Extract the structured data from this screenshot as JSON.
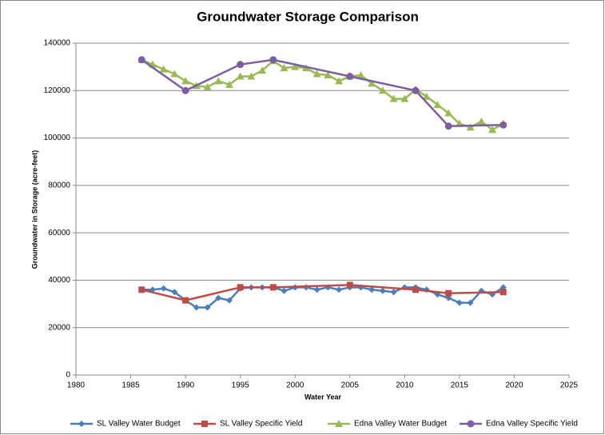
{
  "chart_data": {
    "type": "line",
    "title": "Groundwater Storage Comparison",
    "xlabel": "Water Year",
    "ylabel": "Groundwater in Storage (acre-feet)",
    "xlim": [
      1980,
      2025
    ],
    "xticks": [
      1980,
      1985,
      1990,
      1995,
      2000,
      2005,
      2010,
      2015,
      2020,
      2025
    ],
    "ylim": [
      0,
      140000
    ],
    "yticks": [
      0,
      20000,
      40000,
      60000,
      80000,
      100000,
      120000,
      140000
    ],
    "grid": true,
    "legend": "bottom",
    "series": [
      {
        "name": "SL Valley Water Budget",
        "color": "#4a7ebb",
        "marker": "diamond",
        "x": [
          1986,
          1987,
          1988,
          1989,
          1990,
          1991,
          1992,
          1993,
          1994,
          1995,
          1996,
          1997,
          1998,
          1999,
          2000,
          2001,
          2002,
          2003,
          2004,
          2005,
          2006,
          2007,
          2008,
          2009,
          2010,
          2011,
          2012,
          2013,
          2014,
          2015,
          2016,
          2017,
          2018,
          2019
        ],
        "values": [
          36000,
          36000,
          36500,
          35000,
          31500,
          28500,
          28500,
          32500,
          31500,
          36500,
          37000,
          37000,
          37000,
          35500,
          37000,
          37000,
          36000,
          37000,
          36000,
          37000,
          37000,
          36000,
          35500,
          35000,
          37000,
          37000,
          36000,
          34000,
          32500,
          30500,
          30500,
          35500,
          34000,
          37000
        ]
      },
      {
        "name": "SL Valley Specific Yield",
        "color": "#be4b48",
        "marker": "square",
        "x": [
          1986,
          1990,
          1995,
          1998,
          2005,
          2011,
          2014,
          2019
        ],
        "values": [
          36000,
          31500,
          37000,
          37000,
          38000,
          36000,
          34500,
          35000
        ]
      },
      {
        "name": "Edna Valley Water Budget",
        "color": "#98b954",
        "marker": "triangle",
        "x": [
          1986,
          1987,
          1988,
          1989,
          1990,
          1991,
          1992,
          1993,
          1994,
          1995,
          1996,
          1997,
          1998,
          1999,
          2000,
          2001,
          2002,
          2003,
          2004,
          2005,
          2006,
          2007,
          2008,
          2009,
          2010,
          2011,
          2012,
          2013,
          2014,
          2015,
          2016,
          2017,
          2018,
          2019
        ],
        "values": [
          133000,
          131000,
          129000,
          127000,
          124000,
          122000,
          121500,
          124000,
          122500,
          126000,
          126000,
          128500,
          132500,
          129500,
          130000,
          129500,
          127000,
          126500,
          124000,
          126000,
          126500,
          123000,
          120000,
          116500,
          116500,
          120500,
          117500,
          114000,
          110500,
          106000,
          104500,
          107000,
          103500,
          106000
        ]
      },
      {
        "name": "Edna Valley Specific Yield",
        "color": "#7d5fa0",
        "marker": "circle",
        "x": [
          1986,
          1990,
          1995,
          1998,
          2005,
          2011,
          2014,
          2019
        ],
        "values": [
          133000,
          120000,
          131000,
          133000,
          126000,
          120000,
          105000,
          105500
        ]
      }
    ]
  }
}
